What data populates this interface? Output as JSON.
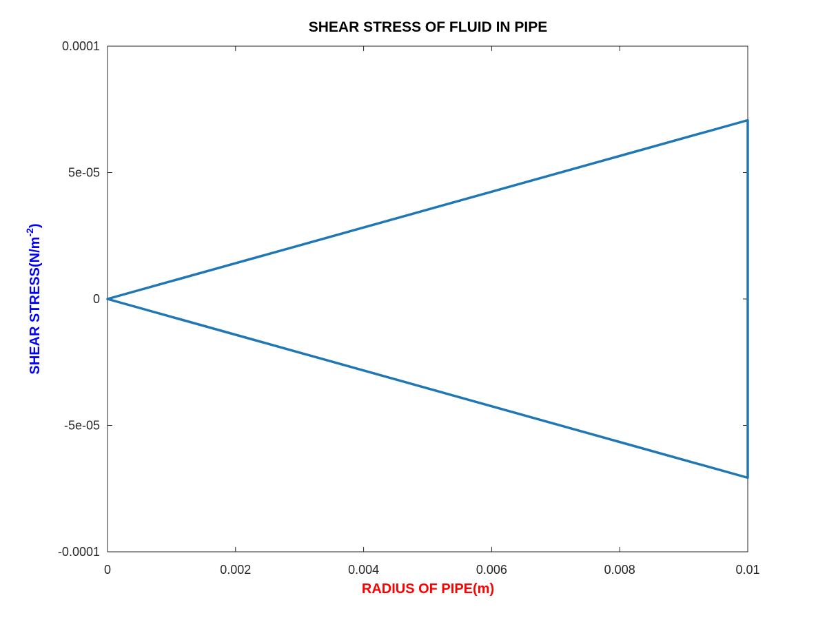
{
  "chart_data": {
    "type": "line",
    "title": "SHEAR STRESS OF FLUID IN PIPE",
    "xlabel": "RADIUS OF PIPE(m)",
    "ylabel_main": "SHEAR STRESS(N/m",
    "ylabel_sup": "-2",
    "ylabel_close": ")",
    "xlim": [
      0,
      0.01
    ],
    "ylim": [
      -0.0001,
      0.0001
    ],
    "x_ticks": [
      0,
      0.002,
      0.004,
      0.006,
      0.008,
      0.01
    ],
    "x_tick_labels": [
      "0",
      "0.002",
      "0.004",
      "0.006",
      "0.008",
      "0.01"
    ],
    "y_ticks": [
      -0.0001,
      -5e-05,
      0,
      5e-05,
      0.0001
    ],
    "y_tick_labels": [
      "-0.0001",
      "-5e-05",
      "0",
      "5e-05",
      "0.0001"
    ],
    "grid": false,
    "series": [
      {
        "x": [
          0,
          0.01,
          0.01,
          0.01,
          0
        ],
        "y": [
          0,
          7.07e-05,
          0,
          -7.07e-05,
          0
        ]
      }
    ],
    "colors": {
      "line": "#1f77b4",
      "xlabel": "#ff0000",
      "ylabel": "#0000ff",
      "axes": "#262626"
    }
  }
}
